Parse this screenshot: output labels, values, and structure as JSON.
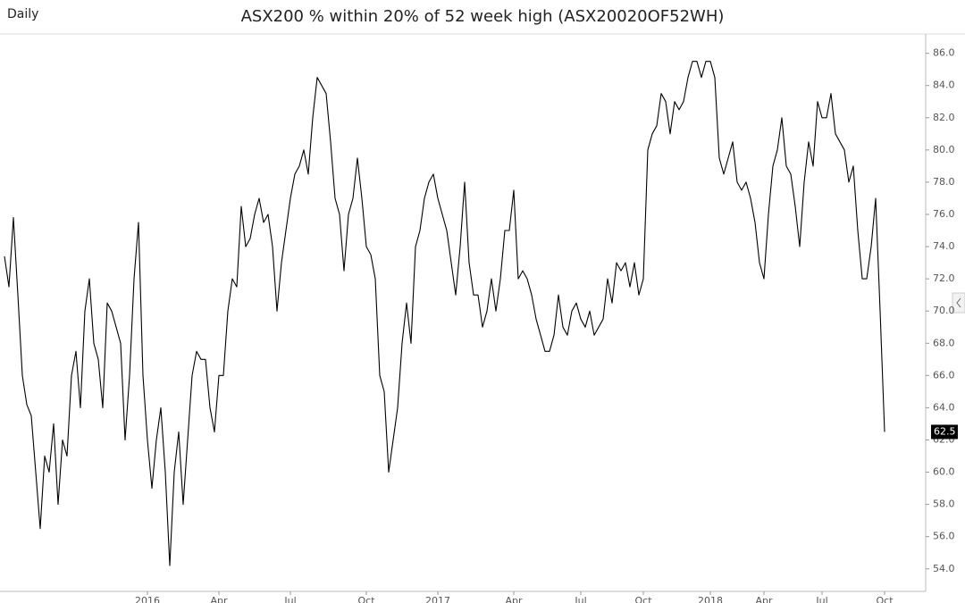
{
  "chart_data": {
    "type": "line",
    "period": "Daily",
    "title": "ASX200 % within 20% of 52 week high (ASX20020OF52WH)",
    "categories": [
      null,
      null,
      null,
      null,
      null,
      null,
      null,
      null,
      null,
      null,
      null,
      null,
      null,
      null,
      null,
      null,
      null,
      null,
      null,
      null,
      null,
      null,
      null,
      null,
      null,
      null,
      null,
      null,
      null,
      null,
      null,
      null,
      "2016",
      null,
      null,
      null,
      null,
      null,
      null,
      null,
      null,
      null,
      null,
      null,
      null,
      null,
      null,
      null,
      "Apr",
      null,
      null,
      null,
      null,
      null,
      null,
      null,
      null,
      null,
      null,
      null,
      null,
      null,
      null,
      null,
      "Jul",
      null,
      null,
      null,
      null,
      null,
      null,
      null,
      null,
      null,
      null,
      null,
      null,
      null,
      null,
      null,
      null,
      "Oct",
      null,
      null,
      null,
      null,
      null,
      null,
      null,
      null,
      null,
      null,
      null,
      null,
      null,
      null,
      null,
      "2017",
      null,
      null,
      null,
      null,
      null,
      null,
      null,
      null,
      null,
      null,
      null,
      null,
      null,
      null,
      null,
      null,
      "Apr",
      null,
      null,
      null,
      null,
      null,
      null,
      null,
      null,
      null,
      null,
      null,
      null,
      null,
      null,
      "Jul",
      null,
      null,
      null,
      null,
      null,
      null,
      null,
      null,
      null,
      null,
      null,
      null,
      null,
      "Oct",
      null,
      null,
      null,
      null,
      null,
      null,
      null,
      null,
      null,
      null,
      null,
      null,
      null,
      null,
      "2018",
      null,
      null,
      null,
      null,
      null,
      null,
      null,
      null,
      null,
      null,
      null,
      "Apr",
      null,
      null,
      null,
      null,
      null,
      null,
      null,
      null,
      null,
      null,
      null,
      null,
      "Jul",
      null,
      null,
      null,
      null,
      null,
      null,
      null,
      null,
      null,
      null,
      null,
      null,
      null,
      "Oct"
    ],
    "series": [
      {
        "color": "#000000",
        "values": [
          73.4,
          71.5,
          75.8,
          71,
          66,
          64.2,
          63.5,
          60,
          56.5,
          61,
          60,
          63,
          58,
          62,
          61,
          66,
          67.5,
          64,
          70,
          72,
          68,
          67,
          64,
          70.5,
          70,
          69,
          68,
          62,
          66,
          72,
          75.5,
          66,
          62,
          59,
          62,
          64,
          60,
          54.2,
          60,
          62.5,
          58,
          62,
          66,
          67.5,
          67,
          67,
          64,
          62.5,
          66,
          66,
          70,
          72,
          71.5,
          76.5,
          74,
          74.5,
          76,
          77,
          75.5,
          76,
          74,
          70,
          73,
          75,
          77,
          78.5,
          79,
          80,
          78.5,
          82,
          84.5,
          84,
          83.5,
          80.5,
          77,
          76,
          72.5,
          76,
          77,
          79.5,
          77,
          74,
          73.5,
          72,
          66,
          65,
          60,
          62,
          64,
          68,
          70.5,
          68,
          74,
          75,
          77,
          78,
          78.5,
          77,
          76,
          75,
          73,
          71,
          74,
          78,
          73,
          71,
          71,
          69,
          70,
          72,
          70,
          72,
          75,
          75,
          77.5,
          72,
          72.5,
          72,
          71,
          69.5,
          68.5,
          67.5,
          67.5,
          68.5,
          71,
          69,
          68.5,
          70,
          70.5,
          69.5,
          69,
          70,
          68.5,
          69,
          69.5,
          72,
          70.5,
          73,
          72.5,
          73,
          71.5,
          73,
          71,
          72,
          80,
          81,
          81.5,
          83.5,
          83,
          81,
          83,
          82.5,
          83,
          84.5,
          85.5,
          85.5,
          84.5,
          85.5,
          85.5,
          84.5,
          79.5,
          78.5,
          79.5,
          80.5,
          78,
          77.5,
          78,
          77,
          75.5,
          73,
          72,
          76,
          79,
          80,
          82,
          79,
          78.5,
          76.5,
          74,
          78,
          80.5,
          79,
          83,
          82,
          82,
          83.5,
          81,
          80.5,
          80,
          78,
          79,
          75,
          72,
          72,
          74,
          77,
          70,
          62.5
        ]
      }
    ],
    "ylim": [
      52.6,
      87.2
    ],
    "yticks": [
      {
        "value": 54,
        "label": "54.0"
      },
      {
        "value": 56,
        "label": "56.0"
      },
      {
        "value": 58,
        "label": "58.0"
      },
      {
        "value": 60,
        "label": "60.0"
      },
      {
        "value": 62,
        "label": "62.0"
      },
      {
        "value": 64,
        "label": "64.0"
      },
      {
        "value": 66,
        "label": "66.0"
      },
      {
        "value": 68,
        "label": "68.0"
      },
      {
        "value": 70,
        "label": "70.0"
      },
      {
        "value": 72,
        "label": "72.0"
      },
      {
        "value": 74,
        "label": "74.0"
      },
      {
        "value": 76,
        "label": "76.0"
      },
      {
        "value": 78,
        "label": "78.0"
      },
      {
        "value": 80,
        "label": "80.0"
      },
      {
        "value": 82,
        "label": "82.0"
      },
      {
        "value": 84,
        "label": "84.0"
      },
      {
        "value": 86,
        "label": "86.0"
      }
    ],
    "grid": false
  }
}
